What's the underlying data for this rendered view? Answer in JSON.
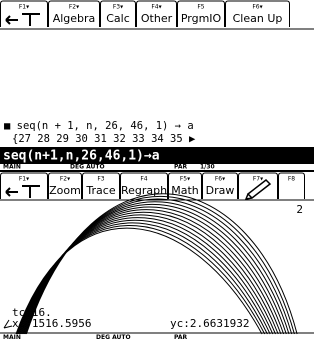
{
  "home_toolbar": {
    "tabs": [
      {
        "key": "F1▾"
      },
      {
        "key": "F2▾",
        "label": "Algebra"
      },
      {
        "key": "F3▾",
        "label": "Calc"
      },
      {
        "key": "F4▾",
        "label": "Other"
      },
      {
        "key": "F5",
        "label": "PrgmIO"
      },
      {
        "key": "F6▾",
        "label": "Clean Up"
      }
    ]
  },
  "history": {
    "entry": "■ seq(n + 1, n, 26, 46, 1) → a",
    "result": "{27   28   29   30   31   32   33   34   35 ▶"
  },
  "entry_line": "seq(n+1,n,26,46,1)→a",
  "home_status": [
    "MAIN",
    "DEG AUTO",
    "PAR",
    "1/30"
  ],
  "graph_toolbar": {
    "tabs": [
      {
        "key": "F1▾"
      },
      {
        "key": "F2▾",
        "label": "Zoom"
      },
      {
        "key": "F3",
        "label": "Trace"
      },
      {
        "key": "F4",
        "label": "Regraph"
      },
      {
        "key": "F5▾",
        "label": "Math"
      },
      {
        "key": "F6▾",
        "label": "Draw"
      },
      {
        "key": "F7▾"
      },
      {
        "key": "F8"
      }
    ]
  },
  "graph": {
    "label": "2",
    "readouts": [
      "tc:16.",
      "xc:1516.5956",
      "yc:2.6631932"
    ]
  },
  "graph_status": [
    "MAIN",
    "DEG AUTO",
    "PAR"
  ]
}
